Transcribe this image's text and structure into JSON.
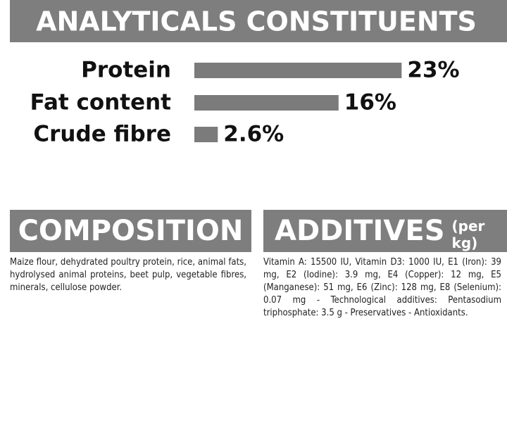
{
  "chart_data": {
    "type": "bar",
    "title": "ANALYTICALS CONSTITUENTS",
    "categories": [
      "Protein",
      "Fat content",
      "Crude fibre"
    ],
    "values": [
      23,
      16,
      2.6
    ],
    "value_labels": [
      "23%",
      "16%",
      "2.6%"
    ],
    "color": "#7b7b7b"
  },
  "composition": {
    "title": "COMPOSITION",
    "text": "Maize flour, dehydrated poultry protein, rice, animal fats, hydrolysed animal proteins, beet pulp, vegetable fibres, minerals, cellulose powder."
  },
  "additives": {
    "title": "ADDITIVES",
    "subtitle": "(per kg)",
    "text": "Vitamin A: 15500 IU, Vitamin D3: 1000 IU, E1 (Iron): 39 mg, E2 (Iodine): 3.9 mg, E4 (Copper): 12 mg, E5 (Manganese): 51 mg, E6 (Zinc): 128 mg, E8 (Selenium): 0.07 mg - Technological additives: Pentasodium triphosphate: 3.5 g - Preservatives - Antioxidants."
  }
}
